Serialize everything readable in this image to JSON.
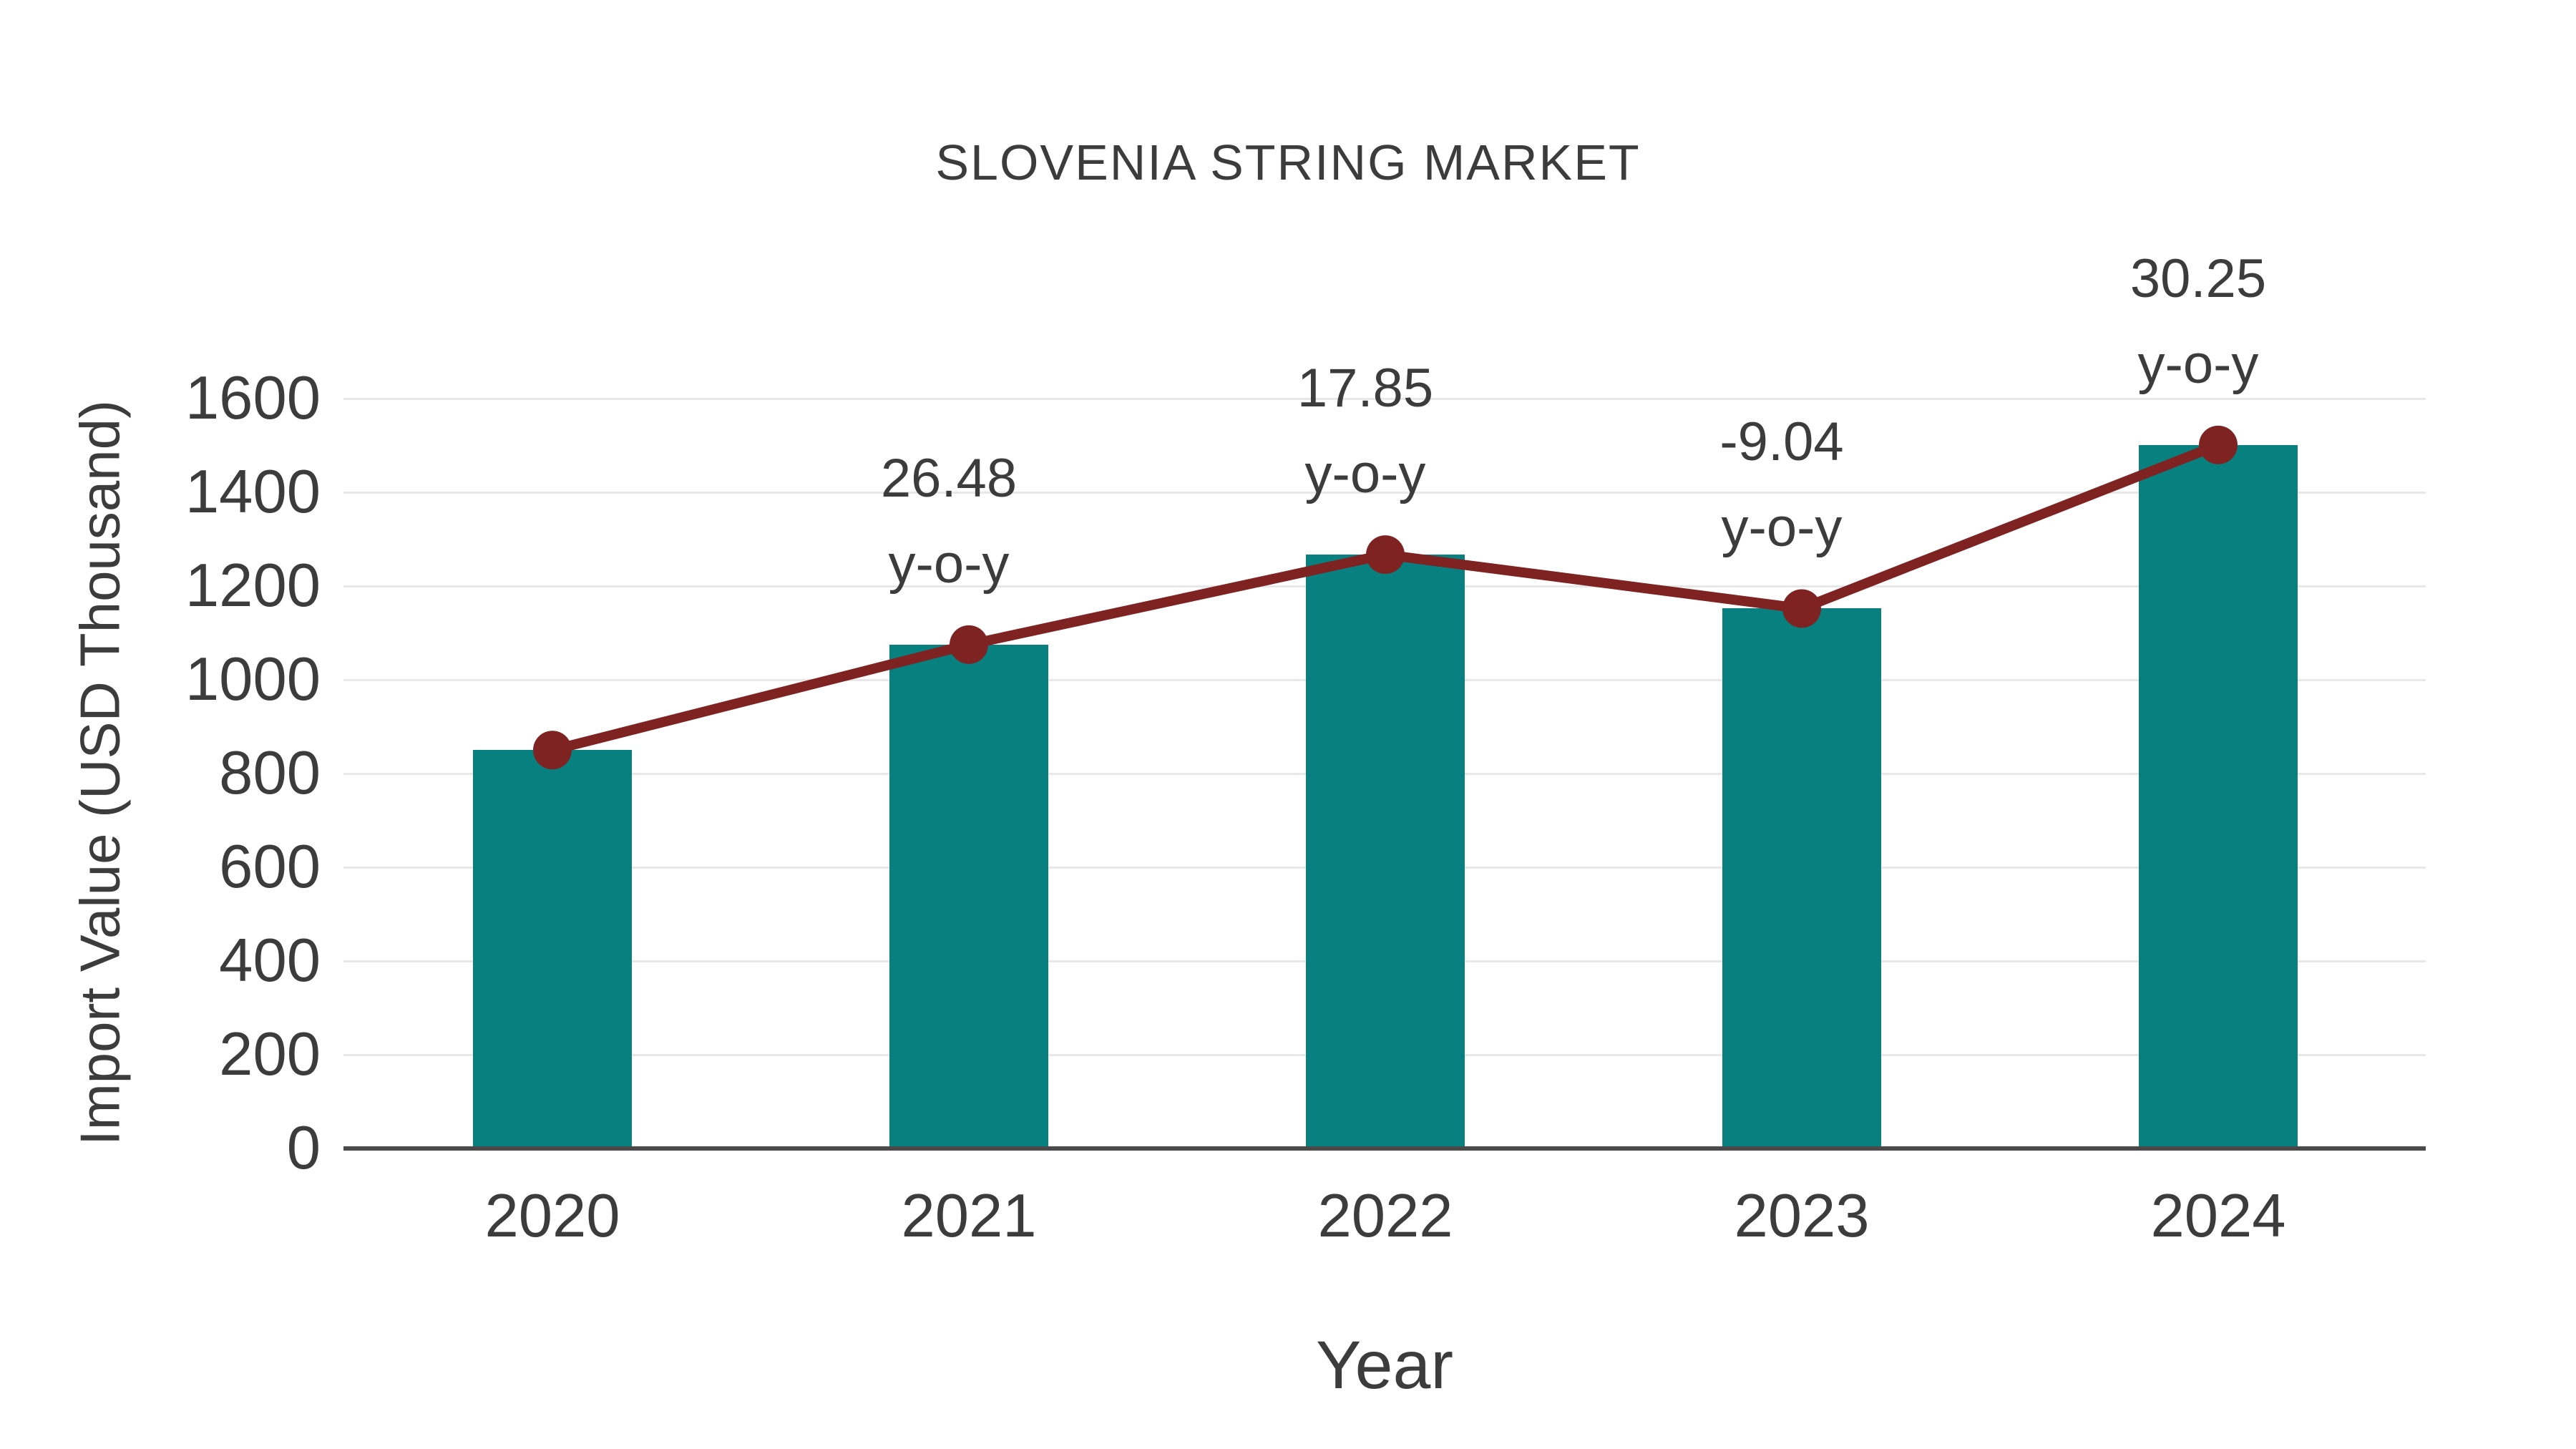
{
  "chart_data": {
    "type": "bar",
    "title": "SLOVENIA STRING MARKET",
    "xlabel": "Year",
    "ylabel": "Import Value (USD Thousand)",
    "categories": [
      "2020",
      "2021",
      "2022",
      "2023",
      "2024"
    ],
    "series": [
      {
        "name": "Import Value bars",
        "type": "bar",
        "color": "#088080",
        "values": [
          850,
          1075,
          1267,
          1152,
          1501
        ]
      },
      {
        "name": "Import Value trend line",
        "type": "line",
        "color": "#7f2222",
        "values": [
          850,
          1075,
          1267,
          1152,
          1501
        ]
      }
    ],
    "annotations": [
      {
        "category": "2021",
        "value": "26.48",
        "suffix": "y-o-y"
      },
      {
        "category": "2022",
        "value": "17.85",
        "suffix": "y-o-y"
      },
      {
        "category": "2023",
        "value": "-9.04",
        "suffix": "y-o-y"
      },
      {
        "category": "2024",
        "value": "30.25",
        "suffix": "y-o-y"
      }
    ],
    "yticks": [
      0,
      200,
      400,
      600,
      800,
      1000,
      1200,
      1400,
      1600
    ],
    "ylim": [
      0,
      1600
    ],
    "grid": true,
    "legend": false,
    "colors": {
      "bar": "#088080",
      "line": "#7f2222",
      "text": "#3c3c3c",
      "grid": "#e8e8e8",
      "axis": "#4a4a4a",
      "background": "#ffffff"
    }
  }
}
